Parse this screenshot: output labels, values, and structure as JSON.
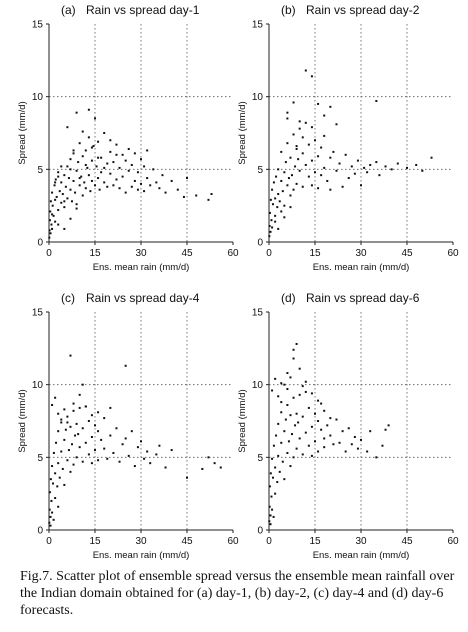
{
  "caption": "Fig.7. Scatter plot of ensemble spread versus the ensemble mean rainfall over the Indian domain obtained for (a) day-1, (b) day-2, (c) day-4 and (d) day-6 forecasts.",
  "chart_data": [
    {
      "type": "scatter",
      "panel_label": "(a)",
      "title": "Rain vs spread day-1",
      "xlabel": "Ens. mean rain (mm/d)",
      "ylabel": "Spread (mm/d)",
      "xlim": [
        0,
        60
      ],
      "ylim": [
        0,
        15
      ],
      "xticks": [
        0,
        15,
        30,
        45,
        60
      ],
      "yticks": [
        0,
        5,
        10,
        15
      ],
      "grid": "dotted at x=15,30,45 and y=5,10",
      "x": [
        0.1,
        0.2,
        0.3,
        0.4,
        0.5,
        0.6,
        0.8,
        1,
        1,
        1.2,
        1.5,
        1.8,
        2,
        2,
        2.2,
        2.5,
        3,
        3,
        3.5,
        4,
        4,
        4.5,
        5,
        5,
        5.5,
        6,
        6,
        6.5,
        7,
        7,
        7.5,
        8,
        8,
        8.5,
        9,
        9,
        9.5,
        10,
        10,
        10.5,
        11,
        11,
        11.5,
        12,
        12,
        12.5,
        13,
        13,
        13.5,
        14,
        14,
        14.5,
        15,
        15,
        15.5,
        16,
        16,
        16.5,
        17,
        17,
        18,
        18,
        19,
        19,
        20,
        20,
        21,
        21,
        22,
        22,
        23,
        23,
        24,
        24,
        25,
        25,
        26,
        26,
        27,
        27,
        28,
        28,
        29,
        29,
        30,
        30,
        31,
        31,
        32,
        32,
        33,
        34,
        35,
        36,
        37,
        38,
        40,
        42,
        44,
        45,
        48,
        52,
        53,
        1,
        2,
        3,
        4,
        5,
        6,
        7,
        8,
        9,
        10,
        11,
        12,
        13,
        14,
        16,
        18,
        20,
        22,
        3,
        5,
        7,
        9
      ],
      "y": [
        0.3,
        0.8,
        1.5,
        2.1,
        0.6,
        2.8,
        1.2,
        3.4,
        0.9,
        2.5,
        1.8,
        3.9,
        2.9,
        1.4,
        4.3,
        3.1,
        2.2,
        4.8,
        3.5,
        2.7,
        4.1,
        3.3,
        4.6,
        2.4,
        3.8,
        5.2,
        3.0,
        4.4,
        3.6,
        5.7,
        2.8,
        4.2,
        6.1,
        3.4,
        4.9,
        2.6,
        5.5,
        3.9,
        6.8,
        4.5,
        3.2,
        5.9,
        4.1,
        6.3,
        3.7,
        5.1,
        4.6,
        7.2,
        3.5,
        5.6,
        4.2,
        6.6,
        3.9,
        8.5,
        5.2,
        4.4,
        6.9,
        3.6,
        5.8,
        4.8,
        7.5,
        4.1,
        5.4,
        3.8,
        6.2,
        4.7,
        5.5,
        3.9,
        6.7,
        4.3,
        5.1,
        3.7,
        6.0,
        4.5,
        5.6,
        3.4,
        4.9,
        6.4,
        3.8,
        5.3,
        4.2,
        6.1,
        3.6,
        4.8,
        5.7,
        4.0,
        5.2,
        3.5,
        6.3,
        4.4,
        3.9,
        5.0,
        4.1,
        3.7,
        4.6,
        3.4,
        4.2,
        3.6,
        3.1,
        4.4,
        3.2,
        2.9,
        3.3,
        1.9,
        4.1,
        4.5,
        5.2,
        2.8,
        7.9,
        5.0,
        6.3,
        8.9,
        4.4,
        7.6,
        5.3,
        9.1,
        6.5,
        5.8,
        5.1,
        7.0,
        6.0,
        1.2,
        0.9,
        1.6,
        2.3
      ]
    },
    {
      "type": "scatter",
      "panel_label": "(b)",
      "title": "Rain vs spread day-2",
      "xlabel": "Ens. mean rain (mm/d)",
      "ylabel": "Spread (mm/d)",
      "xlim": [
        0,
        60
      ],
      "ylim": [
        0,
        15
      ],
      "xticks": [
        0,
        15,
        30,
        45,
        60
      ],
      "yticks": [
        0,
        5,
        10,
        15
      ],
      "grid": "dotted at x=15,30,45 and y=5,10",
      "x": [
        0.1,
        0.2,
        0.3,
        0.5,
        0.6,
        0.8,
        1,
        1,
        1.3,
        1.6,
        2,
        2,
        2.3,
        2.7,
        3,
        3,
        3.5,
        4,
        4,
        4.5,
        5,
        5,
        5.5,
        6,
        6,
        6.5,
        7,
        7,
        7.5,
        8,
        8,
        8.5,
        9,
        9,
        9.5,
        10,
        10,
        11,
        11,
        12,
        12,
        13,
        13,
        14,
        14,
        15,
        15,
        16,
        16,
        17,
        17,
        18,
        18,
        19,
        20,
        20,
        21,
        22,
        23,
        24,
        25,
        26,
        27,
        28,
        29,
        30,
        31,
        32,
        33,
        35,
        36,
        38,
        40,
        42,
        45,
        48,
        50,
        53,
        2,
        4,
        6,
        8,
        10,
        12,
        14,
        16,
        18,
        20,
        22,
        9,
        11,
        14,
        6,
        35,
        3,
        5,
        7
      ],
      "y": [
        0.4,
        1.1,
        2.0,
        0.7,
        2.9,
        1.5,
        3.6,
        1.0,
        2.6,
        4.1,
        3.0,
        1.8,
        4.5,
        2.4,
        3.3,
        5.0,
        2.8,
        4.2,
        6.2,
        3.5,
        4.8,
        2.5,
        5.5,
        3.9,
        6.8,
        4.4,
        3.2,
        5.8,
        4.6,
        7.4,
        3.6,
        5.2,
        6.4,
        4.0,
        5.7,
        4.9,
        7.8,
        3.8,
        6.1,
        5.3,
        8.2,
        4.5,
        6.7,
        3.9,
        5.6,
        7.0,
        4.8,
        5.9,
        3.7,
        6.5,
        4.6,
        5.1,
        7.3,
        4.2,
        5.8,
        3.6,
        6.2,
        4.9,
        5.4,
        3.8,
        6.0,
        4.4,
        5.2,
        4.7,
        5.6,
        3.9,
        5.1,
        4.8,
        5.3,
        5.5,
        4.6,
        5.2,
        5.0,
        5.4,
        5.1,
        5.3,
        4.9,
        5.8,
        1.4,
        2.1,
        8.9,
        9.6,
        8.3,
        11.8,
        11.4,
        9.5,
        8.7,
        9.3,
        8.1,
        6.6,
        7.2,
        7.9,
        8.5,
        9.7,
        0.9,
        1.7,
        2.4
      ]
    },
    {
      "type": "scatter",
      "panel_label": "(c)",
      "title": "Rain vs spread day-4",
      "xlabel": "Ens. mean rain (mm/d)",
      "ylabel": "Spread (mm/d)",
      "xlim": [
        0,
        60
      ],
      "ylim": [
        0,
        15
      ],
      "xticks": [
        0,
        15,
        30,
        45,
        60
      ],
      "yticks": [
        0,
        5,
        10,
        15
      ],
      "grid": "dotted at x=15,30,45 and y=5,10",
      "x": [
        0.1,
        0.2,
        0.3,
        0.5,
        0.6,
        0.8,
        1,
        1,
        1.3,
        1.6,
        2,
        2,
        2.3,
        2.7,
        3,
        3,
        3.5,
        4,
        4,
        4.5,
        5,
        5,
        5.5,
        6,
        6,
        6.5,
        7,
        7,
        7.5,
        8,
        8,
        8.5,
        9,
        9,
        9.5,
        10,
        10,
        11,
        11,
        12,
        12,
        13,
        13,
        14,
        14,
        15,
        15,
        16,
        16,
        17,
        18,
        19,
        20,
        21,
        22,
        23,
        24,
        25,
        26,
        27,
        28,
        29,
        30,
        31,
        32,
        33,
        35,
        36,
        38,
        40,
        45,
        50,
        52,
        54,
        56,
        1,
        2,
        3,
        4,
        5,
        6,
        8,
        10,
        12,
        14,
        16,
        18,
        20,
        25,
        7,
        11,
        0.5,
        1.5,
        3
      ],
      "y": [
        0.5,
        1.4,
        2.6,
        0.9,
        3.5,
        2.0,
        4.4,
        1.2,
        3.2,
        5.3,
        3.9,
        2.2,
        6.0,
        3.0,
        4.6,
        6.8,
        3.6,
        5.4,
        7.4,
        4.2,
        6.2,
        3.1,
        6.9,
        4.8,
        7.8,
        5.5,
        4.0,
        7.1,
        5.9,
        8.2,
        4.5,
        6.5,
        7.3,
        5.0,
        6.6,
        5.7,
        8.4,
        4.7,
        7.0,
        6.0,
        8.5,
        5.2,
        7.5,
        4.6,
        6.4,
        7.2,
        5.5,
        6.8,
        4.8,
        6.2,
        5.6,
        4.9,
        6.5,
        5.3,
        7.0,
        4.7,
        5.9,
        6.3,
        5.1,
        6.8,
        4.4,
        5.7,
        6.1,
        4.9,
        5.4,
        4.6,
        5.2,
        5.8,
        4.3,
        5.5,
        3.6,
        4.2,
        5.0,
        4.6,
        4.3,
        8.6,
        9.1,
        8.0,
        7.6,
        8.3,
        7.4,
        8.7,
        9.3,
        8.5,
        7.9,
        8.1,
        7.7,
        8.4,
        11.3,
        12.0,
        10.0,
        0.3,
        0.7,
        1.6
      ]
    },
    {
      "type": "scatter",
      "panel_label": "(d)",
      "title": "Rain vs spread day-6",
      "xlabel": "Ens. mean rain (mm/d)",
      "ylabel": "Spread (mm/d)",
      "xlim": [
        0,
        60
      ],
      "ylim": [
        0,
        15
      ],
      "xticks": [
        0,
        15,
        30,
        45,
        60
      ],
      "yticks": [
        0,
        5,
        10,
        15
      ],
      "grid": "dotted at x=15,30,45 and y=5,10",
      "x": [
        0.1,
        0.2,
        0.3,
        0.5,
        0.6,
        0.8,
        1,
        1,
        1.3,
        1.6,
        2,
        2,
        2.3,
        2.7,
        3,
        3,
        3.5,
        4,
        4,
        4.5,
        5,
        5,
        5.5,
        6,
        6,
        6.5,
        7,
        7,
        7.5,
        8,
        8,
        8.5,
        9,
        9,
        9.5,
        10,
        10,
        11,
        11,
        12,
        12,
        13,
        13,
        14,
        14,
        15,
        15,
        16,
        16,
        17,
        17,
        18,
        18,
        19,
        20,
        21,
        22,
        23,
        24,
        25,
        26,
        27,
        28,
        29,
        30,
        32,
        33,
        35,
        37,
        38,
        39,
        1,
        2,
        3,
        4,
        5,
        6,
        7,
        8,
        9,
        10,
        11,
        12,
        14,
        16,
        18,
        20,
        8,
        6,
        4,
        0.5,
        1.5
      ],
      "y": [
        0.6,
        1.6,
        3.0,
        1.0,
        3.9,
        2.3,
        4.9,
        1.4,
        3.6,
        5.8,
        4.3,
        2.5,
        6.5,
        3.3,
        5.1,
        7.3,
        4.0,
        6.0,
        8.1,
        4.7,
        6.8,
        3.5,
        7.6,
        5.3,
        8.6,
        6.1,
        4.4,
        7.9,
        6.6,
        9.1,
        5.0,
        7.2,
        8.0,
        5.6,
        7.4,
        6.3,
        9.3,
        5.2,
        7.8,
        6.7,
        9.5,
        5.8,
        8.4,
        5.1,
        7.1,
        8.0,
        6.1,
        7.5,
        5.4,
        6.9,
        8.7,
        6.3,
        5.7,
        7.2,
        6.5,
        5.9,
        7.6,
        6.0,
        6.8,
        5.4,
        7.0,
        5.9,
        6.4,
        5.6,
        6.2,
        5.4,
        6.8,
        5.0,
        5.8,
        6.9,
        7.2,
        9.6,
        10.4,
        9.2,
        8.8,
        10.0,
        9.7,
        10.5,
        12.4,
        12.8,
        11.1,
        9.9,
        10.2,
        9.4,
        8.9,
        8.2,
        7.7,
        11.8,
        10.8,
        10.1,
        0.4,
        0.9
      ]
    }
  ]
}
